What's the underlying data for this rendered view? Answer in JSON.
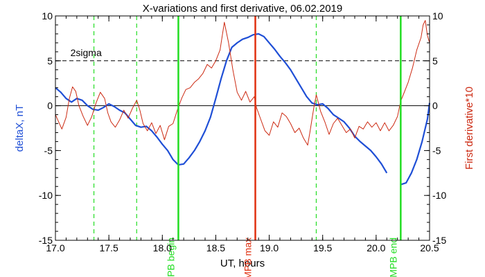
{
  "chart_data": {
    "type": "line",
    "title": "X-variations and first derivative, 06.02.2019",
    "xlabel": "UT, hours",
    "ylabel_left": "deltaX, nT",
    "ylabel_right": "First derivative*10",
    "xlim": [
      17.0,
      20.5
    ],
    "ylim_left": [
      -15,
      10
    ],
    "ylim_right": [
      -15,
      10
    ],
    "x_ticks": [
      "17.0",
      "17.5",
      "18.0",
      "18.5",
      "19.0",
      "19.5",
      "20.0",
      "20.5"
    ],
    "x_tick_values": [
      17.0,
      17.5,
      18.0,
      18.5,
      19.0,
      19.5,
      20.0,
      20.5
    ],
    "y_ticks": [
      "-15",
      "-10",
      "-5",
      "0",
      "5",
      "10"
    ],
    "y_tick_values": [
      -15,
      -10,
      -5,
      0,
      5,
      10
    ],
    "colors": {
      "deltaX": "#1f4fd6",
      "derivative": "#cc2a12",
      "mpb_edges": "#22dd22",
      "mpb_max": "#e03010",
      "axes": "#000000"
    },
    "zero_line": 0,
    "sigma_line": {
      "label": "2sigma",
      "value": 5
    },
    "dashed_verticals": [
      17.36,
      17.76,
      19.44
    ],
    "markers": [
      {
        "label": "MPB begin",
        "x": 18.15,
        "color": "#22dd22"
      },
      {
        "label": "MPB max",
        "x": 18.87,
        "color": "#e03010"
      },
      {
        "label": "MPB end",
        "x": 20.23,
        "color": "#22dd22"
      }
    ],
    "series": [
      {
        "key": "deltaX",
        "segments": [
          [
            [
              17.0,
              2.0
            ],
            [
              17.05,
              1.5
            ],
            [
              17.1,
              0.8
            ],
            [
              17.15,
              0.4
            ],
            [
              17.2,
              0.8
            ],
            [
              17.25,
              0.6
            ],
            [
              17.3,
              0.0
            ],
            [
              17.35,
              -0.4
            ],
            [
              17.4,
              -0.5
            ],
            [
              17.45,
              -0.2
            ],
            [
              17.5,
              0.2
            ],
            [
              17.55,
              -0.1
            ],
            [
              17.6,
              -0.5
            ],
            [
              17.65,
              -0.8
            ],
            [
              17.7,
              -1.5
            ],
            [
              17.75,
              -2.2
            ],
            [
              17.8,
              -2.4
            ],
            [
              17.85,
              -2.3
            ],
            [
              17.9,
              -2.8
            ],
            [
              17.95,
              -3.5
            ],
            [
              18.0,
              -4.3
            ],
            [
              18.05,
              -5.0
            ],
            [
              18.1,
              -6.0
            ],
            [
              18.15,
              -6.6
            ],
            [
              18.2,
              -6.5
            ],
            [
              18.25,
              -5.8
            ],
            [
              18.3,
              -5.0
            ],
            [
              18.35,
              -4.0
            ],
            [
              18.4,
              -2.8
            ],
            [
              18.45,
              -1.3
            ],
            [
              18.5,
              0.8
            ],
            [
              18.55,
              3.0
            ],
            [
              18.6,
              5.0
            ],
            [
              18.65,
              6.5
            ],
            [
              18.7,
              7.0
            ],
            [
              18.75,
              7.4
            ],
            [
              18.8,
              7.6
            ],
            [
              18.85,
              7.9
            ],
            [
              18.9,
              8.0
            ],
            [
              18.95,
              7.7
            ],
            [
              19.0,
              7.0
            ],
            [
              19.05,
              6.3
            ],
            [
              19.1,
              5.5
            ],
            [
              19.15,
              4.8
            ],
            [
              19.2,
              4.0
            ],
            [
              19.25,
              3.0
            ],
            [
              19.3,
              2.0
            ],
            [
              19.35,
              1.0
            ],
            [
              19.4,
              0.3
            ],
            [
              19.45,
              0.1
            ],
            [
              19.5,
              0.2
            ],
            [
              19.55,
              -0.3
            ],
            [
              19.6,
              -1.0
            ],
            [
              19.65,
              -1.4
            ],
            [
              19.7,
              -1.8
            ],
            [
              19.75,
              -2.5
            ],
            [
              19.8,
              -3.4
            ],
            [
              19.85,
              -4.0
            ],
            [
              19.9,
              -4.5
            ],
            [
              19.95,
              -5.0
            ],
            [
              20.0,
              -5.7
            ],
            [
              20.05,
              -6.5
            ],
            [
              20.1,
              -7.5
            ]
          ],
          [
            [
              20.23,
              -8.8
            ],
            [
              20.28,
              -8.6
            ],
            [
              20.33,
              -7.5
            ],
            [
              20.38,
              -6.0
            ],
            [
              20.43,
              -4.0
            ],
            [
              20.48,
              -1.5
            ],
            [
              20.5,
              0.3
            ]
          ]
        ]
      },
      {
        "key": "derivative",
        "segments": [
          [
            [
              17.0,
              -1.0
            ],
            [
              17.03,
              -1.8
            ],
            [
              17.06,
              -2.6
            ],
            [
              17.1,
              -1.3
            ],
            [
              17.13,
              0.8
            ],
            [
              17.16,
              2.1
            ],
            [
              17.19,
              1.6
            ],
            [
              17.22,
              0.0
            ],
            [
              17.26,
              -1.2
            ],
            [
              17.3,
              -2.2
            ],
            [
              17.34,
              -1.2
            ],
            [
              17.38,
              0.3
            ],
            [
              17.42,
              1.5
            ],
            [
              17.46,
              0.8
            ],
            [
              17.49,
              -0.8
            ],
            [
              17.52,
              -1.8
            ],
            [
              17.56,
              -2.4
            ],
            [
              17.6,
              -1.6
            ],
            [
              17.64,
              -0.5
            ],
            [
              17.68,
              -1.4
            ],
            [
              17.72,
              -0.3
            ],
            [
              17.76,
              0.6
            ],
            [
              17.79,
              -0.5
            ],
            [
              17.82,
              -2.0
            ],
            [
              17.86,
              -2.8
            ],
            [
              17.9,
              -1.9
            ],
            [
              17.94,
              -3.1
            ],
            [
              17.98,
              -2.2
            ],
            [
              18.02,
              -3.8
            ],
            [
              18.06,
              -2.3
            ],
            [
              18.1,
              -2.0
            ],
            [
              18.14,
              -0.5
            ],
            [
              18.18,
              0.8
            ],
            [
              18.22,
              1.8
            ],
            [
              18.26,
              2.0
            ],
            [
              18.3,
              2.6
            ],
            [
              18.34,
              3.0
            ],
            [
              18.38,
              3.6
            ],
            [
              18.42,
              4.6
            ],
            [
              18.46,
              4.2
            ],
            [
              18.5,
              5.0
            ],
            [
              18.54,
              6.2
            ],
            [
              18.58,
              9.3
            ],
            [
              18.62,
              7.0
            ],
            [
              18.66,
              4.0
            ],
            [
              18.7,
              1.5
            ],
            [
              18.74,
              0.6
            ],
            [
              18.78,
              1.6
            ],
            [
              18.82,
              0.4
            ],
            [
              18.86,
              1.0
            ],
            [
              18.88,
              -0.2
            ],
            [
              18.92,
              -1.5
            ],
            [
              18.96,
              -2.8
            ],
            [
              19.0,
              -3.3
            ],
            [
              19.04,
              -1.8
            ],
            [
              19.08,
              -2.4
            ],
            [
              19.12,
              -0.8
            ],
            [
              19.16,
              -1.2
            ],
            [
              19.2,
              -2.0
            ],
            [
              19.24,
              -3.0
            ],
            [
              19.28,
              -2.5
            ],
            [
              19.32,
              -3.6
            ],
            [
              19.36,
              -4.4
            ],
            [
              19.38,
              -3.0
            ],
            [
              19.42,
              0.0
            ],
            [
              19.44,
              1.2
            ],
            [
              19.48,
              -0.6
            ],
            [
              19.52,
              -1.8
            ],
            [
              19.56,
              -3.2
            ],
            [
              19.6,
              -2.0
            ],
            [
              19.64,
              -1.4
            ],
            [
              19.68,
              -2.2
            ],
            [
              19.72,
              -3.0
            ],
            [
              19.76,
              -2.6
            ],
            [
              19.8,
              -3.6
            ],
            [
              19.84,
              -2.3
            ],
            [
              19.88,
              -2.6
            ],
            [
              19.92,
              -1.8
            ],
            [
              19.96,
              -2.4
            ],
            [
              20.0,
              -1.9
            ],
            [
              20.04,
              -2.8
            ],
            [
              20.08,
              -1.9
            ],
            [
              20.12,
              -2.8
            ],
            [
              20.16,
              -2.2
            ],
            [
              20.2,
              -1.2
            ],
            [
              20.23,
              0.5
            ],
            [
              20.26,
              1.4
            ],
            [
              20.3,
              2.6
            ],
            [
              20.34,
              4.2
            ],
            [
              20.38,
              6.2
            ],
            [
              20.42,
              7.6
            ],
            [
              20.44,
              9.0
            ],
            [
              20.46,
              9.5
            ],
            [
              20.48,
              7.8
            ],
            [
              20.5,
              7.0
            ]
          ]
        ]
      }
    ]
  }
}
